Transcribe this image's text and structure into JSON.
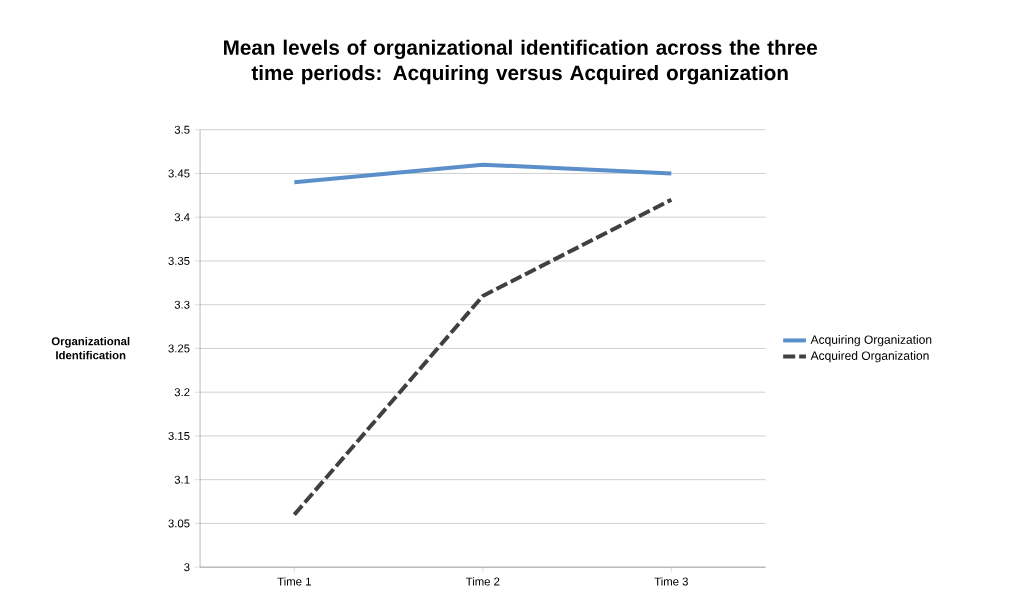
{
  "chart_data": {
    "type": "line",
    "title": "Mean levels of organizational identification across the three time periods: Acquiring versus Acquired organization",
    "ylabel": "Organizational Identification",
    "categories": [
      "Time 1",
      "Time 2",
      "Time 3"
    ],
    "series": [
      {
        "name": "Acquiring Organization",
        "color": "#5b8fc9",
        "values": [
          3.44,
          3.46,
          3.45
        ],
        "line_style": "solid"
      },
      {
        "name": "Acquired Organization",
        "color": "#404040",
        "values": [
          3.06,
          3.31,
          3.42
        ],
        "line_style": "dashed"
      }
    ],
    "ylim": [
      3,
      3.5
    ],
    "yticks": [
      3,
      3.05,
      3.1,
      3.15,
      3.2,
      3.25,
      3.3,
      3.35,
      3.4,
      3.45,
      3.5
    ],
    "grid": "y",
    "legend": "right",
    "marker": "none"
  }
}
